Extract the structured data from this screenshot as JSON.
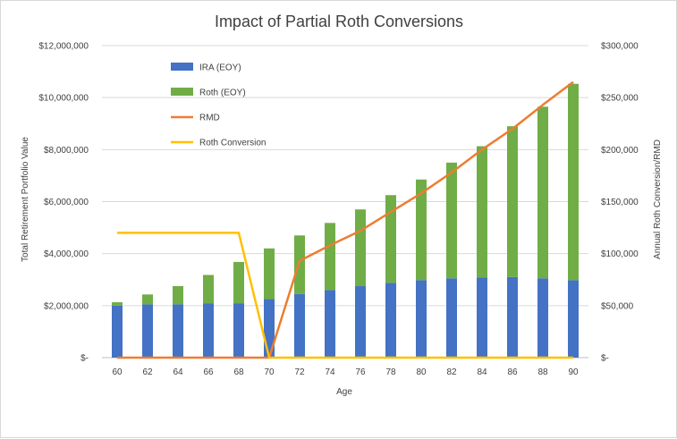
{
  "chart_data": {
    "type": "bar",
    "title": "Impact of Partial Roth Conversions",
    "xlabel": "Age",
    "ylabel": "Total Retirement Portfolio Value",
    "y2label": "Annual Roth Conversion/RMD",
    "categories": [
      "60",
      "62",
      "64",
      "66",
      "68",
      "70",
      "72",
      "74",
      "76",
      "78",
      "80",
      "82",
      "84",
      "86",
      "88",
      "90"
    ],
    "ylim": [
      0,
      12000000
    ],
    "y2lim": [
      0,
      300000
    ],
    "yticks": [
      "$-",
      "$2,000,000",
      "$4,000,000",
      "$6,000,000",
      "$8,000,000",
      "$10,000,000",
      "$12,000,000"
    ],
    "y2ticks": [
      "$-",
      "$50,000",
      "$100,000",
      "$150,000",
      "$200,000",
      "$250,000",
      "$300,000"
    ],
    "series": [
      {
        "name": "IRA (EOY)",
        "kind": "stacked-bar",
        "axis": "left",
        "color": "#4472c4",
        "values": [
          2000000,
          2050000,
          2050000,
          2080000,
          2080000,
          2250000,
          2450000,
          2600000,
          2750000,
          2880000,
          2980000,
          3050000,
          3080000,
          3100000,
          3050000,
          2980000
        ]
      },
      {
        "name": "Roth (EOY)",
        "kind": "stacked-bar",
        "axis": "left",
        "color": "#70ad47",
        "values": [
          130000,
          380000,
          700000,
          1100000,
          1600000,
          1950000,
          2250000,
          2580000,
          2950000,
          3370000,
          3870000,
          4450000,
          5050000,
          5800000,
          6600000,
          7550000
        ]
      },
      {
        "name": "RMD",
        "kind": "line",
        "axis": "right",
        "color": "#ed7d31",
        "values": [
          0,
          0,
          0,
          0,
          0,
          0,
          93000,
          108000,
          122000,
          140000,
          158000,
          178000,
          200000,
          220000,
          243000,
          265000
        ]
      },
      {
        "name": "Roth Conversion",
        "kind": "line",
        "axis": "right",
        "color": "#ffc000",
        "values": [
          120000,
          120000,
          120000,
          120000,
          120000,
          0,
          0,
          0,
          0,
          0,
          0,
          0,
          0,
          0,
          0,
          0
        ]
      }
    ],
    "grid": true,
    "legend_position": "top-left"
  }
}
